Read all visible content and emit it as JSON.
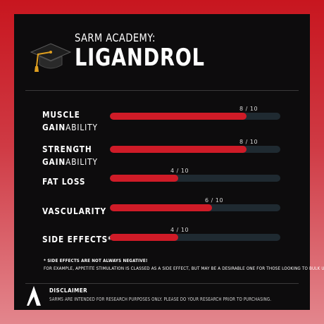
{
  "header": {
    "subtitle": "SARM ACADEMY:",
    "title": "LIGANDROL",
    "icon": "graduation-cap-icon"
  },
  "ratings": [
    {
      "label_line1": "MUSCLE",
      "label_line2_bold": "GAIN",
      "label_line2_light": "ABILITY",
      "score_text": "8 / 10",
      "value": 8,
      "max": 10
    },
    {
      "label_line1": "STRENGTH",
      "label_line2_bold": "GAIN",
      "label_line2_light": "ABILITY",
      "score_text": "8 / 10",
      "value": 8,
      "max": 10
    },
    {
      "label_line1": "FAT LOSS",
      "score_text": "4 / 10",
      "value": 4,
      "max": 10
    },
    {
      "label_line1": "VASCULARITY",
      "score_text": "6 / 10",
      "value": 6,
      "max": 10
    },
    {
      "label_line1": "SIDE EFFECTS*",
      "score_text": "4 / 10",
      "value": 4,
      "max": 10
    }
  ],
  "notes": {
    "line1": "* SIDE EFFECTS ARE NOT ALWAYS NEGATIVE!",
    "line2": "FOR EXAMPLE,  APPETITE STIMULATION IS CLASSED AS A SIDE EFFECT, BUT MAY BE A DESIRABLE ONE FOR THOSE LOOKING TO BULK UP!"
  },
  "disclaimer": {
    "title": "DISCLAIMER",
    "text": "SARMS ARE INTENDED FOR RESEARCH PURPOSES ONLY. PLEASE DO YOUR RESEARCH PRIOR TO PURCHASING.",
    "logo": "brand-a-logo-icon"
  },
  "colors": {
    "bar_fill": "#cf1b27",
    "bar_track": "#1f2a31",
    "card_bg": "#0d0c0d",
    "frame_top": "#c8161f",
    "frame_bottom": "#e3868d"
  }
}
